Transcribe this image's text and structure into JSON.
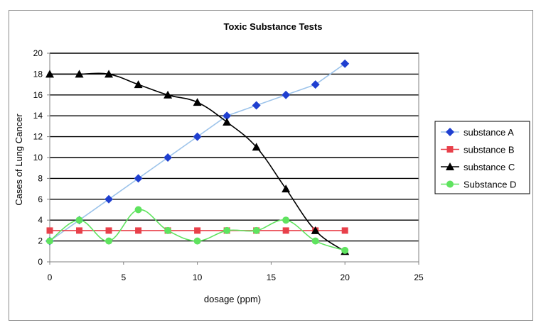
{
  "chart_data": {
    "type": "line",
    "title": "Toxic Substance Tests",
    "xlabel": "dosage (ppm)",
    "ylabel": "Cases of Lung Cancer",
    "xlim": [
      0,
      25
    ],
    "ylim": [
      0,
      20
    ],
    "xticks": [
      0,
      5,
      10,
      15,
      20,
      25
    ],
    "yticks": [
      0,
      2,
      4,
      6,
      8,
      10,
      12,
      14,
      16,
      18,
      20
    ],
    "grid": "horizontal",
    "legend_position": "right",
    "series": [
      {
        "name": "substance A",
        "color": "#9cc3ea",
        "marker_color": "#1f3fd0",
        "marker": "diamond",
        "smooth": false,
        "x": [
          0,
          2,
          4,
          6,
          8,
          10,
          12,
          14,
          16,
          18,
          20
        ],
        "y": [
          2,
          4,
          6,
          8,
          10,
          12,
          14,
          15,
          16,
          17,
          19
        ]
      },
      {
        "name": "substance B",
        "color": "#e8404a",
        "marker_color": "#e8404a",
        "marker": "square",
        "smooth": false,
        "x": [
          0,
          2,
          4,
          6,
          8,
          10,
          12,
          14,
          16,
          18,
          20
        ],
        "y": [
          3,
          3,
          3,
          3,
          3,
          3,
          3,
          3,
          3,
          3,
          3
        ]
      },
      {
        "name": "substance C",
        "color": "#000000",
        "marker_color": "#000000",
        "marker": "triangle",
        "smooth": true,
        "x": [
          0,
          2,
          4,
          6,
          8,
          10,
          12,
          14,
          16,
          18,
          20
        ],
        "y": [
          18,
          18,
          18,
          17,
          16,
          15.3,
          13.4,
          11,
          7,
          3,
          1
        ]
      },
      {
        "name": "Substance D",
        "color": "#5fe35f",
        "marker_color": "#5fe35f",
        "marker": "circle",
        "smooth": true,
        "x": [
          0,
          2,
          4,
          6,
          8,
          10,
          12,
          14,
          16,
          18,
          20
        ],
        "y": [
          2,
          4,
          2,
          5,
          3,
          2,
          3,
          3,
          4,
          2,
          1.1
        ]
      }
    ]
  }
}
